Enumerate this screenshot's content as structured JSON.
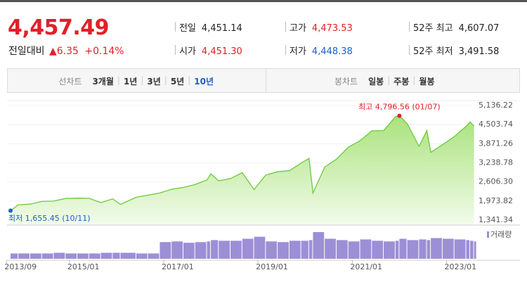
{
  "header": {
    "price": "4,457.49",
    "change_label": "전일대비",
    "change": "▲6.35",
    "change_pct": "+0.14%",
    "stats": [
      {
        "label": "전일",
        "value": "4,451.14",
        "color": "#222222"
      },
      {
        "label": "시가",
        "value": "4,451.30",
        "color": "#e0202a"
      },
      {
        "label": "고가",
        "value": "4,473.53",
        "color": "#e0202a"
      },
      {
        "label": "저가",
        "value": "4,448.38",
        "color": "#1a5fc8"
      },
      {
        "label": "52주 최고",
        "value": "4,607.07",
        "color": "#222222"
      },
      {
        "label": "52주 최저",
        "value": "3,491.58",
        "color": "#222222"
      }
    ]
  },
  "tabs": {
    "line_label": "선차트",
    "line_periods": [
      "3개월",
      "1년",
      "3년",
      "5년",
      "10년"
    ],
    "selected_index": 4,
    "candle_label": "봉차트",
    "candle_periods": [
      "일봉",
      "주봉",
      "월봉"
    ]
  },
  "chart_data": {
    "type": "line",
    "x": [
      "2013/10",
      "2013/12",
      "2014/03",
      "2014/06",
      "2014/09",
      "2014/12",
      "2015/03",
      "2015/06",
      "2015/09",
      "2015/12",
      "2016/02",
      "2016/06",
      "2016/09",
      "2016/12",
      "2017/03",
      "2017/06",
      "2017/09",
      "2017/12",
      "2018/01",
      "2018/03",
      "2018/06",
      "2018/09",
      "2018/12",
      "2019/03",
      "2019/06",
      "2019/09",
      "2019/12",
      "2020/02",
      "2020/03",
      "2020/06",
      "2020/09",
      "2020/12",
      "2021/03",
      "2021/06",
      "2021/09",
      "2021/12",
      "2022/01",
      "2022/03",
      "2022/06",
      "2022/08",
      "2022/09",
      "2022/12",
      "2023/03",
      "2023/06",
      "2023/07",
      "2023/08"
    ],
    "series": [
      {
        "color": "#6cc93a",
        "values": [
          1655.45,
          1848,
          1872,
          1960,
          1972,
          2058,
          2067,
          2063,
          1920,
          2044,
          1864,
          2099,
          2168,
          2239,
          2363,
          2423,
          2519,
          2674,
          2873,
          2640,
          2718,
          2914,
          2351,
          2834,
          2942,
          2977,
          3231,
          3386,
          2237,
          3100,
          3363,
          3756,
          3973,
          4298,
          4308,
          4766,
          4796.56,
          4530,
          3785,
          4305,
          3585,
          3840,
          4109,
          4450,
          4589,
          4457.49
        ]
      }
    ],
    "volume": {
      "name": "거래량",
      "color": "#9d8fd6",
      "values": [
        8,
        8,
        8,
        8,
        9,
        8,
        8,
        8,
        9,
        9,
        9,
        8,
        8,
        25,
        26,
        24,
        25,
        26,
        28,
        27,
        27,
        30,
        33,
        26,
        25,
        27,
        27,
        28,
        40,
        30,
        28,
        26,
        29,
        27,
        26,
        27,
        30,
        28,
        29,
        28,
        31,
        30,
        29,
        28,
        27,
        26
      ]
    },
    "ylim": [
      1341.34,
      5136.22
    ],
    "yticks": [
      {
        "value": 5136.22,
        "label": "5,136.22"
      },
      {
        "value": 4503.74,
        "label": "4,503.74"
      },
      {
        "value": 3871.26,
        "label": "3,871.26"
      },
      {
        "value": 3238.78,
        "label": "3,238.78"
      },
      {
        "value": 2606.3,
        "label": "2,606.30"
      },
      {
        "value": 1973.82,
        "label": "1,973.82"
      },
      {
        "value": 1341.34,
        "label": "1,341.34"
      }
    ],
    "xticks": [
      "2013/09",
      "2015/01",
      "2017/01",
      "2019/01",
      "2021/01",
      "2023/01"
    ],
    "grid": true,
    "annotations": [
      {
        "text": "최고 4,796.56 (01/07)",
        "x": "2022/01",
        "y": 4796.56,
        "color": "#e0202a"
      },
      {
        "text": "최저 1,655.45 (10/11)",
        "x": "2013/10",
        "y": 1655.45,
        "color": "#1a5fc8"
      }
    ]
  }
}
